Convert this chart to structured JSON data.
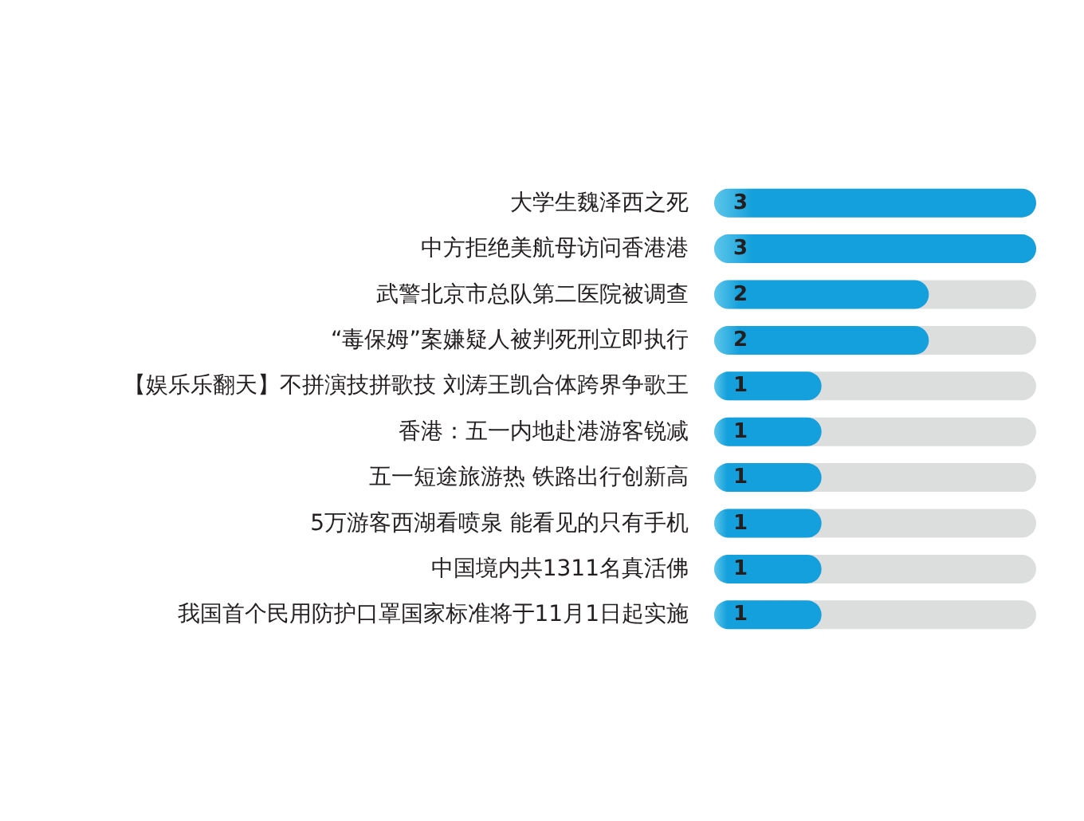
{
  "chart_data": {
    "type": "bar",
    "orientation": "horizontal",
    "categories": [
      "大学生魏泽西之死",
      "中方拒绝美航母访问香港港",
      "武警北京市总队第二医院被调查",
      "“毒保姆”案嫌疑人被判死刑立即执行",
      "【娱乐乐翻天】不拼演技拼歌技 刘涛王凯合体跨界争歌王",
      "香港：五一内地赴港游客锐减",
      "五一短途旅游热 铁路出行创新高",
      "5万游客西湖看喷泉 能看见的只有手机",
      "中国境内共1311名真活佛",
      "我国首个民用防护口罩国家标准将于11月1日起实施"
    ],
    "values": [
      3,
      3,
      2,
      2,
      1,
      1,
      1,
      1,
      1,
      1
    ],
    "color": "#14a0dc",
    "xlim": [
      0,
      3
    ],
    "data_labels": true,
    "tick_labels": "y"
  }
}
